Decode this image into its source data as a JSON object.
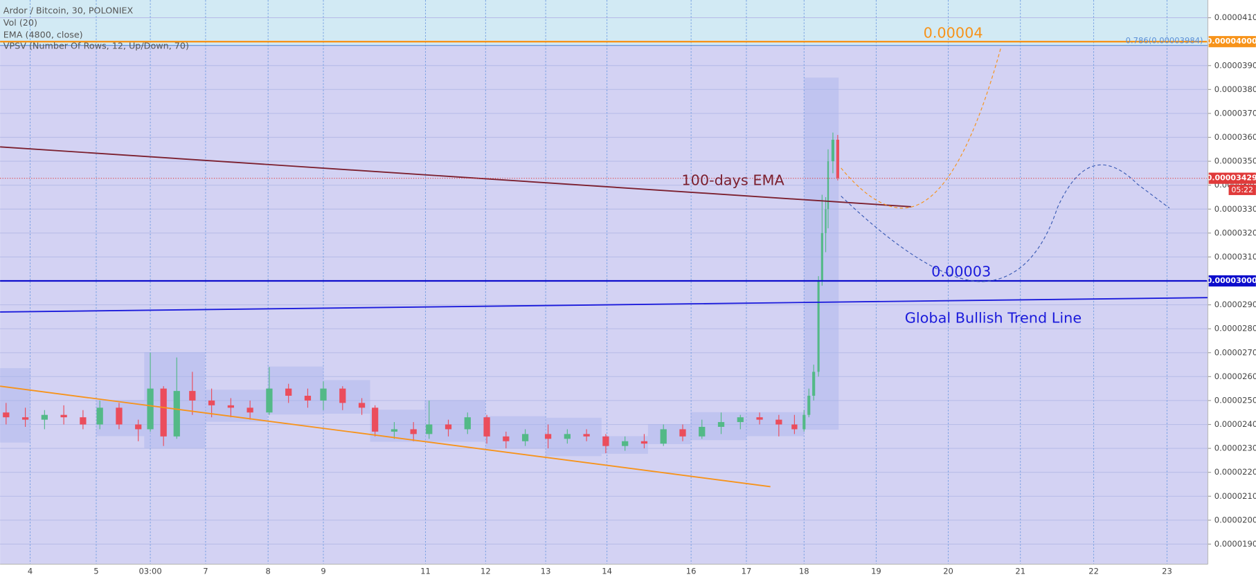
{
  "chart_data": {
    "type": "candlestick",
    "title": "Ardor / Bitcoin, 30, POLONIEX",
    "indicators": [
      "Vol (20)",
      "EMA (4800, close)",
      "VPSV (Number Of Rows, 12, Up/Down, 70)"
    ],
    "x": [
      5,
      21,
      37,
      53,
      69,
      83,
      99,
      115,
      125,
      136,
      147,
      160,
      176,
      192,
      208,
      224,
      240,
      256,
      269,
      285,
      301,
      312,
      328,
      344,
      357,
      373,
      389,
      405,
      421,
      437,
      456,
      472,
      488,
      504,
      520,
      536,
      552,
      568,
      584,
      600,
      616,
      632,
      648,
      661,
      669,
      673,
      677,
      681,
      684,
      687,
      689,
      693,
      697
    ],
    "open": [
      2.45e-05,
      2.43e-05,
      2.42e-05,
      2.44e-05,
      2.43e-05,
      2.4e-05,
      2.47e-05,
      2.4e-05,
      2.38e-05,
      2.55e-05,
      2.35e-05,
      2.54e-05,
      2.5e-05,
      2.48e-05,
      2.47e-05,
      2.45e-05,
      2.55e-05,
      2.52e-05,
      2.5e-05,
      2.55e-05,
      2.49e-05,
      2.47e-05,
      2.37e-05,
      2.38e-05,
      2.36e-05,
      2.4e-05,
      2.38e-05,
      2.43e-05,
      2.35e-05,
      2.33e-05,
      2.36e-05,
      2.34e-05,
      2.36e-05,
      2.35e-05,
      2.31e-05,
      2.33e-05,
      2.32e-05,
      2.38e-05,
      2.35e-05,
      2.39e-05,
      2.41e-05,
      2.43e-05,
      2.42e-05,
      2.4e-05,
      2.38e-05,
      2.44e-05,
      2.52e-05,
      2.62e-05,
      3e-05,
      3.2e-05,
      3.3e-05,
      3.5e-05,
      3.59e-05
    ],
    "high": [
      2.49e-05,
      2.47e-05,
      2.46e-05,
      2.48e-05,
      2.46e-05,
      2.5e-05,
      2.49e-05,
      2.42e-05,
      2.7e-05,
      2.56e-05,
      2.68e-05,
      2.62e-05,
      2.55e-05,
      2.51e-05,
      2.5e-05,
      2.64e-05,
      2.57e-05,
      2.55e-05,
      2.58e-05,
      2.56e-05,
      2.51e-05,
      2.48e-05,
      2.41e-05,
      2.41e-05,
      2.5e-05,
      2.42e-05,
      2.45e-05,
      2.44e-05,
      2.37e-05,
      2.38e-05,
      2.4e-05,
      2.38e-05,
      2.38e-05,
      2.36e-05,
      2.35e-05,
      2.36e-05,
      2.4e-05,
      2.4e-05,
      2.42e-05,
      2.45e-05,
      2.44e-05,
      2.45e-05,
      2.44e-05,
      2.44e-05,
      2.46e-05,
      2.55e-05,
      2.65e-05,
      3.02e-05,
      3.36e-05,
      3.35e-05,
      3.55e-05,
      3.62e-05,
      3.61e-05
    ],
    "low": [
      2.4e-05,
      2.39e-05,
      2.38e-05,
      2.4e-05,
      2.38e-05,
      2.38e-05,
      2.38e-05,
      2.33e-05,
      2.37e-05,
      2.31e-05,
      2.34e-05,
      2.44e-05,
      2.43e-05,
      2.43e-05,
      2.42e-05,
      2.44e-05,
      2.49e-05,
      2.47e-05,
      2.46e-05,
      2.46e-05,
      2.44e-05,
      2.35e-05,
      2.34e-05,
      2.33e-05,
      2.34e-05,
      2.35e-05,
      2.36e-05,
      2.32e-05,
      2.3e-05,
      2.31e-05,
      2.3e-05,
      2.32e-05,
      2.33e-05,
      2.28e-05,
      2.29e-05,
      2.3e-05,
      2.31e-05,
      2.33e-05,
      2.34e-05,
      2.36e-05,
      2.38e-05,
      2.4e-05,
      2.35e-05,
      2.36e-05,
      2.37e-05,
      2.43e-05,
      2.5e-05,
      2.6e-05,
      2.98e-05,
      3.12e-05,
      3.22e-05,
      3.45e-05,
      3.42e-05
    ],
    "close": [
      2.43e-05,
      2.42e-05,
      2.44e-05,
      2.43e-05,
      2.4e-05,
      2.47e-05,
      2.4e-05,
      2.38e-05,
      2.55e-05,
      2.35e-05,
      2.54e-05,
      2.5e-05,
      2.48e-05,
      2.47e-05,
      2.45e-05,
      2.55e-05,
      2.52e-05,
      2.5e-05,
      2.55e-05,
      2.49e-05,
      2.47e-05,
      2.37e-05,
      2.38e-05,
      2.36e-05,
      2.4e-05,
      2.38e-05,
      2.43e-05,
      2.35e-05,
      2.33e-05,
      2.36e-05,
      2.34e-05,
      2.36e-05,
      2.35e-05,
      2.31e-05,
      2.33e-05,
      2.32e-05,
      2.38e-05,
      2.35e-05,
      2.39e-05,
      2.41e-05,
      2.43e-05,
      2.42e-05,
      2.4e-05,
      2.38e-05,
      2.44e-05,
      2.52e-05,
      2.62e-05,
      3e-05,
      3.2e-05,
      3.3e-05,
      3.5e-05,
      3.59e-05,
      3.43e-05
    ],
    "up_color": "#53b987",
    "down_color": "#eb4d5c",
    "xlim": [
      0,
      1005
    ],
    "xticks": [
      {
        "value": 25,
        "label": "4"
      },
      {
        "value": 80,
        "label": "5"
      },
      {
        "value": 125,
        "label": "03:00"
      },
      {
        "value": 171,
        "label": "7"
      },
      {
        "value": 223,
        "label": "8"
      },
      {
        "value": 269,
        "label": "9"
      },
      {
        "value": 354,
        "label": "11"
      },
      {
        "value": 404,
        "label": "12"
      },
      {
        "value": 454,
        "label": "13"
      },
      {
        "value": 505,
        "label": "14"
      },
      {
        "value": 575,
        "label": "16"
      },
      {
        "value": 621,
        "label": "17"
      },
      {
        "value": 669,
        "label": "18"
      },
      {
        "value": 729,
        "label": "19"
      },
      {
        "value": 789,
        "label": "20"
      },
      {
        "value": 849,
        "label": "21"
      },
      {
        "value": 910,
        "label": "22"
      },
      {
        "value": 971,
        "label": "23"
      }
    ],
    "ylim": [
      1.816e-05,
      4.174e-05
    ],
    "yticks": [
      {
        "value": 1.9e-05,
        "label": "0.00001900"
      },
      {
        "value": 2e-05,
        "label": "0.00002000"
      },
      {
        "value": 2.1e-05,
        "label": "0.00002100"
      },
      {
        "value": 2.2e-05,
        "label": "0.00002200"
      },
      {
        "value": 2.3e-05,
        "label": "0.00002300"
      },
      {
        "value": 2.4e-05,
        "label": "0.00002400"
      },
      {
        "value": 2.5e-05,
        "label": "0.00002500"
      },
      {
        "value": 2.6e-05,
        "label": "0.00002600"
      },
      {
        "value": 2.7e-05,
        "label": "0.00002700"
      },
      {
        "value": 2.8e-05,
        "label": "0.00002800"
      },
      {
        "value": 2.9e-05,
        "label": "0.00002900"
      },
      {
        "value": 3e-05,
        "label": "0.00003000"
      },
      {
        "value": 3.1e-05,
        "label": "0.00003100"
      },
      {
        "value": 3.2e-05,
        "label": "0.00003200"
      },
      {
        "value": 3.3e-05,
        "label": "0.00003300"
      },
      {
        "value": 3.4e-05,
        "label": "0.00003400"
      },
      {
        "value": 3.5e-05,
        "label": "0.00003500"
      },
      {
        "value": 3.6e-05,
        "label": "0.00003600"
      },
      {
        "value": 3.7e-05,
        "label": "0.00003700"
      },
      {
        "value": 3.8e-05,
        "label": "0.00003800"
      },
      {
        "value": 3.9e-05,
        "label": "0.00003900"
      },
      {
        "value": 4e-05,
        "label": "0.00004000"
      },
      {
        "value": 4.1e-05,
        "label": "0.00004100"
      }
    ],
    "grid": true,
    "lines": [
      {
        "x": [
          0,
          758
        ],
        "values": [
          3.56e-05,
          3.31e-05
        ],
        "color": "#7b1f2e"
      },
      {
        "x": [
          0,
          1005
        ],
        "values": [
          2.87e-05,
          2.93e-05
        ],
        "color": "#1a1adb"
      },
      {
        "x": [
          0,
          641
        ],
        "values": [
          2.56e-05,
          2.14e-05
        ],
        "color": "#f7931a"
      }
    ],
    "levels": [
      {
        "value": 4e-05,
        "label": "0.00004000",
        "color": "#f7931a"
      },
      {
        "value": 3e-05,
        "label": "0.00003000",
        "color": "#0d0dcc"
      }
    ],
    "fib_level": {
      "value": 3.984e-05,
      "label": "0.786(0.00003984)",
      "color": "#5b8fd6"
    },
    "last_price": {
      "value": 3.429e-05,
      "label": "0.00003429",
      "countdown": "05:22",
      "color": "#e03a3a"
    },
    "annotations": [
      {
        "text": "0.00004",
        "color": "#f7931a"
      },
      {
        "text": "100-days EMA",
        "color": "#7b1f2e"
      },
      {
        "text": "0.00003",
        "color": "#1a1adb"
      },
      {
        "text": "Global Bullish Trend Line",
        "color": "#1a1adb"
      }
    ]
  }
}
